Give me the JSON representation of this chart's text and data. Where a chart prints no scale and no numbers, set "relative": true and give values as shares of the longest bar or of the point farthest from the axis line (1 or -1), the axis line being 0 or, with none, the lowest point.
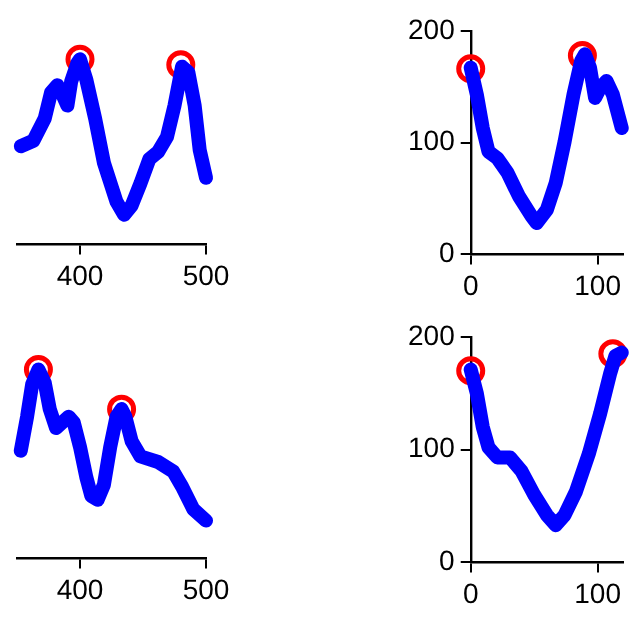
{
  "chart_data": [
    {
      "type": "line",
      "relative": true,
      "xlim": [
        350,
        500
      ],
      "xticks": [
        400,
        500
      ],
      "tick_labels": "x",
      "series": [
        {
          "type": "line",
          "color": "#0000ff",
          "marker": "none",
          "x": [
            353,
            363,
            372,
            377,
            382,
            386,
            390,
            393,
            398,
            400,
            405,
            412,
            419,
            429,
            435,
            441,
            448,
            455,
            462,
            469,
            475,
            479,
            481,
            486,
            491,
            495,
            500
          ],
          "values": [
            0.53,
            0.56,
            0.68,
            0.82,
            0.86,
            0.81,
            0.75,
            0.88,
            0.98,
            1,
            0.89,
            0.68,
            0.44,
            0.23,
            0.16,
            0.21,
            0.33,
            0.46,
            0.5,
            0.58,
            0.75,
            0.89,
            0.96,
            0.93,
            0.75,
            0.51,
            0.36
          ]
        },
        {
          "type": "scatter",
          "color": "#ff0000",
          "marker": "circle",
          "x": [
            400,
            480
          ],
          "values": [
            1,
            0.97
          ]
        }
      ]
    },
    {
      "type": "line",
      "xlim": [
        0,
        120
      ],
      "xticks": [
        0,
        100
      ],
      "ylim": [
        0,
        200
      ],
      "yticks": [
        0,
        100,
        200
      ],
      "series": [
        {
          "type": "line",
          "color": "#0000ff",
          "marker": "none",
          "x": [
            0,
            4.8,
            9.5,
            14,
            21,
            29,
            38,
            48,
            52,
            60,
            67,
            74,
            81,
            87,
            90,
            94,
            98,
            102,
            107,
            112,
            119
          ],
          "values": [
            167,
            143,
            113,
            92,
            86,
            73,
            52,
            34,
            28,
            40,
            64,
            101,
            143,
            173,
            179,
            167,
            140,
            149,
            155,
            143,
            113
          ]
        },
        {
          "type": "scatter",
          "color": "#ff0000",
          "marker": "circle",
          "x": [
            0,
            88
          ],
          "values": [
            166,
            178
          ]
        }
      ]
    },
    {
      "type": "line",
      "relative": true,
      "xlim": [
        350,
        500
      ],
      "xticks": [
        400,
        500
      ],
      "tick_labels": "x",
      "series": [
        {
          "type": "line",
          "color": "#0000ff",
          "marker": "none",
          "x": [
            353,
            358,
            362,
            367,
            372,
            376,
            381,
            386,
            391,
            395,
            400,
            405,
            409,
            414,
            419,
            424,
            429,
            433,
            436,
            441,
            448,
            462,
            474,
            481,
            490,
            500
          ],
          "values": [
            0.57,
            0.75,
            0.92,
            1,
            0.93,
            0.79,
            0.69,
            0.72,
            0.75,
            0.72,
            0.59,
            0.43,
            0.33,
            0.31,
            0.39,
            0.59,
            0.75,
            0.79,
            0.75,
            0.62,
            0.54,
            0.51,
            0.46,
            0.38,
            0.26,
            0.2
          ]
        },
        {
          "type": "scatter",
          "color": "#ff0000",
          "marker": "circle",
          "x": [
            367,
            433
          ],
          "values": [
            1,
            0.79
          ]
        }
      ]
    },
    {
      "type": "line",
      "xlim": [
        0,
        120
      ],
      "xticks": [
        0,
        100
      ],
      "ylim": [
        0,
        200
      ],
      "yticks": [
        0,
        100,
        200
      ],
      "series": [
        {
          "type": "line",
          "color": "#0000ff",
          "marker": "none",
          "x": [
            0,
            4.8,
            9.5,
            14,
            21,
            31,
            40,
            50,
            60,
            67,
            74,
            83,
            93,
            102,
            110,
            114,
            119
          ],
          "values": [
            171,
            150,
            120,
            102,
            93,
            93,
            81,
            60,
            42,
            33,
            42,
            63,
            96,
            132,
            168,
            183,
            186
          ]
        },
        {
          "type": "scatter",
          "color": "#ff0000",
          "marker": "circle",
          "x": [
            0,
            112
          ],
          "values": [
            170,
            185
          ]
        }
      ]
    }
  ]
}
